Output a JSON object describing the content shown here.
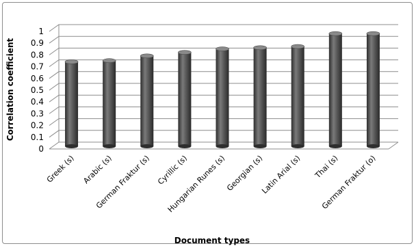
{
  "chart_data": {
    "type": "bar",
    "title": "",
    "xlabel": "Document types",
    "ylabel": "Correlation coefficient",
    "ylim": [
      0,
      1
    ],
    "yticks": [
      "0",
      "0.1",
      "0.2",
      "0.3",
      "0.4",
      "0.5",
      "0.6",
      "0.7",
      "0.8",
      "0.9",
      "1"
    ],
    "grid": true,
    "legend": "none",
    "style": "3d-cylinder",
    "bar_color": "#555555",
    "categories": [
      "Greek (s)",
      "Arabic (s)",
      "German Fraktur (s)",
      "Cyrillic (s)",
      "Hungarian Runes (s)",
      "Georgian (s)",
      "Latin Arial (s)",
      "Thai (s)",
      "German Fraktur (o)"
    ],
    "values": [
      0.73,
      0.74,
      0.78,
      0.81,
      0.84,
      0.85,
      0.86,
      0.97,
      0.97
    ]
  }
}
